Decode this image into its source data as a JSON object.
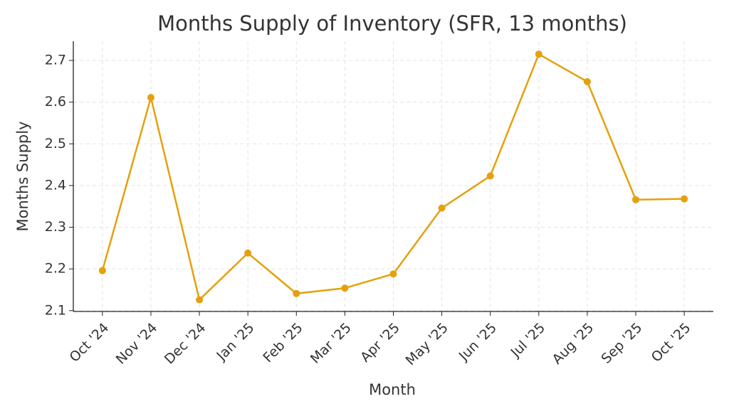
{
  "chart_data": {
    "type": "line",
    "title": "Months Supply of Inventory (SFR, 13 months)",
    "x_label": "Month",
    "y_label": "Months Supply",
    "categories": [
      "Oct '24",
      "Nov '24",
      "Dec '24",
      "Jan '25",
      "Feb '25",
      "Mar '25",
      "Apr '25",
      "May '25",
      "Jun '25",
      "Jul '25",
      "Aug '25",
      "Sep '25",
      "Oct '25"
    ],
    "series": [
      {
        "name": "Months Supply",
        "color": "#e5a00d",
        "values": [
          2.196,
          2.611,
          2.126,
          2.238,
          2.141,
          2.154,
          2.188,
          2.346,
          2.423,
          2.715,
          2.649,
          2.366,
          2.368
        ]
      }
    ],
    "ylim": [
      2.098,
      2.746
    ],
    "yticks": [
      2.1,
      2.2,
      2.3,
      2.4,
      2.5,
      2.6,
      2.7
    ],
    "grid": true
  }
}
